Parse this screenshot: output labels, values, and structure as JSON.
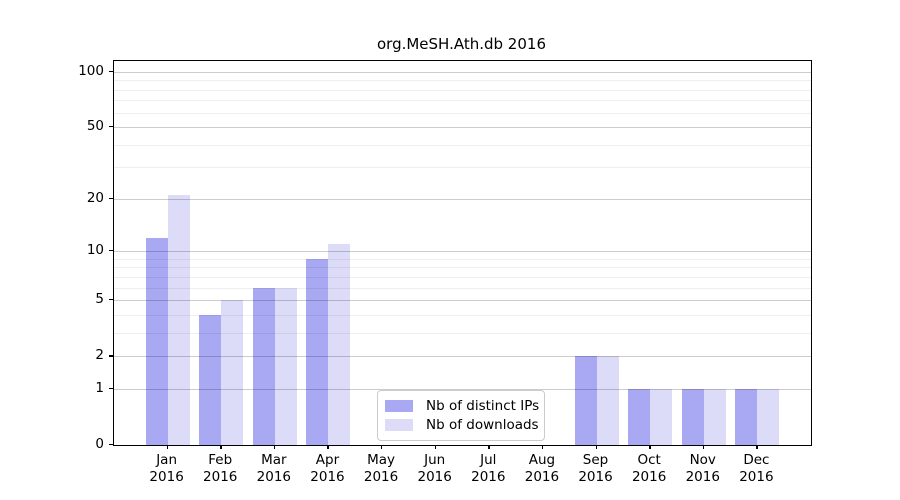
{
  "title": "org.MeSH.Ath.db 2016",
  "colors": {
    "distinct_ips_bar": "#a9a9f3",
    "downloads_bar": "#dcdcf8",
    "axis": "#000000",
    "major_grid": "#cccccc",
    "minor_grid": "#ececec"
  },
  "chart_data": {
    "type": "bar",
    "title": "org.MeSH.Ath.db 2016",
    "categories": [
      "Jan",
      "Feb",
      "Mar",
      "Apr",
      "May",
      "Jun",
      "Jul",
      "Aug",
      "Sep",
      "Oct",
      "Nov",
      "Dec"
    ],
    "category_year_label": "2016",
    "series": [
      {
        "name": "Nb of distinct IPs",
        "color": "#a9a9f3",
        "values": [
          12,
          4,
          6,
          9,
          0,
          0,
          0,
          0,
          2,
          1,
          1,
          1
        ]
      },
      {
        "name": "Nb of downloads",
        "color": "#dcdcf8",
        "values": [
          21,
          5,
          6,
          11,
          0,
          0,
          0,
          0,
          2,
          1,
          1,
          1
        ]
      }
    ],
    "xlabel": "",
    "ylabel": "",
    "yscale": "log10(value+1)",
    "ylim": [
      0,
      100
    ],
    "yticks": [
      0,
      1,
      2,
      5,
      10,
      20,
      50,
      100
    ],
    "minor_yticks": [
      3,
      4,
      6,
      7,
      8,
      9,
      30,
      40,
      60,
      70,
      80,
      90
    ],
    "grid": true,
    "legend_position": "lower-center-left inside plot"
  }
}
